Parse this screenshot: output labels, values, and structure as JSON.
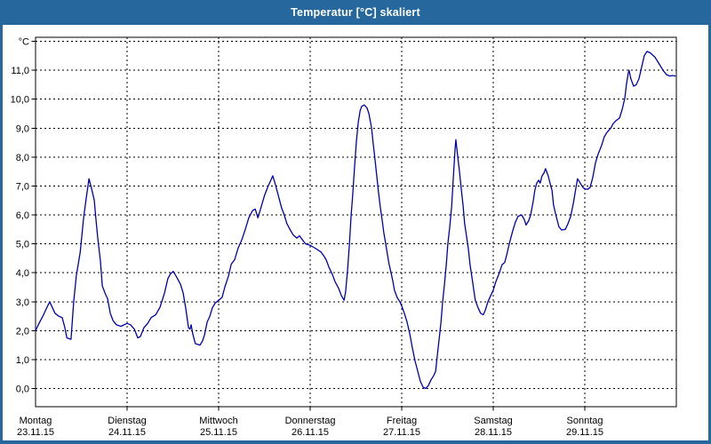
{
  "titlebar": {
    "title": "Temperatur [°C] skaliert"
  },
  "chart_data": {
    "type": "line",
    "title": "Temperatur [°C] skaliert",
    "grid": "dashed",
    "legend": "none",
    "y_axis": {
      "unit_label": "°C",
      "min": 0,
      "max": 12,
      "tick_step": 1,
      "tick_labels": [
        "0,0",
        "1,0",
        "2,0",
        "3,0",
        "4,0",
        "5,0",
        "6,0",
        "7,0",
        "8,0",
        "9,0",
        "10,0",
        "11,0"
      ]
    },
    "x_axis": {
      "unit": "hours_from_monday_00:00",
      "range_hours": [
        0,
        168
      ],
      "days": [
        {
          "weekday": "Montag",
          "date": "23.11.15"
        },
        {
          "weekday": "Dienstag",
          "date": "24.11.15"
        },
        {
          "weekday": "Mittwoch",
          "date": "25.11.15"
        },
        {
          "weekday": "Donnerstag",
          "date": "26.11.15"
        },
        {
          "weekday": "Freitag",
          "date": "27.11.15"
        },
        {
          "weekday": "Samstag",
          "date": "28.11.15"
        },
        {
          "weekday": "Sonntag",
          "date": "29.11.15"
        }
      ]
    },
    "style": {
      "line_color": "#0000B3",
      "grid_color": "#000000",
      "axis_color": "#000000",
      "frame_color": "#26689E",
      "title_text_color": "#FFFFFF",
      "background": "#FFFFFF"
    },
    "series": [
      {
        "name": "Temperatur",
        "unit": "°C",
        "points": [
          [
            0,
            2.0
          ],
          [
            0.9,
            2.25
          ],
          [
            1.9,
            2.5
          ],
          [
            2.8,
            2.75
          ],
          [
            3.7,
            3.0
          ],
          [
            4.4,
            2.8
          ],
          [
            5.1,
            2.6
          ],
          [
            6.1,
            2.5
          ],
          [
            7,
            2.45
          ],
          [
            7.7,
            2.1
          ],
          [
            8.2,
            1.75
          ],
          [
            9.3,
            1.7
          ],
          [
            10,
            3.0
          ],
          [
            10.7,
            3.9
          ],
          [
            11.7,
            4.7
          ],
          [
            12.6,
            5.9
          ],
          [
            13.3,
            6.6
          ],
          [
            14,
            7.25
          ],
          [
            14.7,
            6.9
          ],
          [
            15.4,
            6.5
          ],
          [
            15.8,
            5.9
          ],
          [
            16.3,
            5.2
          ],
          [
            17,
            4.4
          ],
          [
            17.5,
            3.55
          ],
          [
            18.2,
            3.3
          ],
          [
            18.9,
            3.1
          ],
          [
            19.6,
            2.6
          ],
          [
            20.3,
            2.35
          ],
          [
            21.2,
            2.2
          ],
          [
            22.4,
            2.15
          ],
          [
            24,
            2.25
          ],
          [
            24.9,
            2.2
          ],
          [
            25.9,
            2.05
          ],
          [
            26.8,
            1.75
          ],
          [
            27.5,
            1.8
          ],
          [
            28.4,
            2.1
          ],
          [
            29.4,
            2.25
          ],
          [
            30.3,
            2.45
          ],
          [
            31.5,
            2.55
          ],
          [
            32.6,
            2.8
          ],
          [
            33.8,
            3.3
          ],
          [
            34.7,
            3.8
          ],
          [
            35.4,
            3.97
          ],
          [
            36.1,
            4.05
          ],
          [
            37,
            3.85
          ],
          [
            38,
            3.6
          ],
          [
            38.7,
            3.3
          ],
          [
            39.4,
            2.75
          ],
          [
            40.1,
            2.1
          ],
          [
            40.5,
            2.05
          ],
          [
            40.8,
            2.2
          ],
          [
            41.2,
            1.9
          ],
          [
            41.9,
            1.55
          ],
          [
            43.1,
            1.5
          ],
          [
            43.8,
            1.65
          ],
          [
            44.3,
            1.85
          ],
          [
            45,
            2.3
          ],
          [
            45.7,
            2.5
          ],
          [
            46.4,
            2.8
          ],
          [
            47.1,
            2.95
          ],
          [
            48,
            3.05
          ],
          [
            48.9,
            3.15
          ],
          [
            49.6,
            3.5
          ],
          [
            50.6,
            3.9
          ],
          [
            51.3,
            4.3
          ],
          [
            52.2,
            4.45
          ],
          [
            53.1,
            4.85
          ],
          [
            54.1,
            5.15
          ],
          [
            55,
            5.5
          ],
          [
            55.9,
            5.9
          ],
          [
            56.9,
            6.15
          ],
          [
            57.6,
            6.2
          ],
          [
            58.3,
            5.9
          ],
          [
            59.2,
            6.3
          ],
          [
            60.1,
            6.7
          ],
          [
            61,
            7.0
          ],
          [
            61.7,
            7.2
          ],
          [
            62.2,
            7.35
          ],
          [
            62.9,
            7.05
          ],
          [
            63.6,
            6.7
          ],
          [
            64.5,
            6.25
          ],
          [
            65.2,
            6.0
          ],
          [
            65.9,
            5.7
          ],
          [
            66.9,
            5.45
          ],
          [
            67.6,
            5.3
          ],
          [
            68.5,
            5.2
          ],
          [
            69.2,
            5.28
          ],
          [
            69.9,
            5.15
          ],
          [
            70.8,
            5.0
          ],
          [
            72,
            4.95
          ],
          [
            72.9,
            4.88
          ],
          [
            73.9,
            4.8
          ],
          [
            74.8,
            4.72
          ],
          [
            75.5,
            4.6
          ],
          [
            76.2,
            4.45
          ],
          [
            76.9,
            4.2
          ],
          [
            77.8,
            3.95
          ],
          [
            78.5,
            3.7
          ],
          [
            79.5,
            3.45
          ],
          [
            80.2,
            3.2
          ],
          [
            80.9,
            3.05
          ],
          [
            81.3,
            3.35
          ],
          [
            81.8,
            4.1
          ],
          [
            82.3,
            5.0
          ],
          [
            82.7,
            5.9
          ],
          [
            83.2,
            6.8
          ],
          [
            83.6,
            7.6
          ],
          [
            84.1,
            8.5
          ],
          [
            84.6,
            9.2
          ],
          [
            85.1,
            9.6
          ],
          [
            85.5,
            9.75
          ],
          [
            86.2,
            9.8
          ],
          [
            86.9,
            9.7
          ],
          [
            87.4,
            9.5
          ],
          [
            88.1,
            9.0
          ],
          [
            88.5,
            8.5
          ],
          [
            89,
            7.9
          ],
          [
            89.5,
            7.3
          ],
          [
            89.9,
            6.8
          ],
          [
            90.4,
            6.25
          ],
          [
            90.9,
            5.8
          ],
          [
            91.3,
            5.4
          ],
          [
            91.8,
            5.0
          ],
          [
            92.3,
            4.6
          ],
          [
            92.7,
            4.3
          ],
          [
            93.2,
            4.0
          ],
          [
            93.7,
            3.7
          ],
          [
            94.1,
            3.4
          ],
          [
            94.8,
            3.15
          ],
          [
            95.5,
            3.0
          ],
          [
            96,
            2.85
          ],
          [
            96.7,
            2.6
          ],
          [
            97.4,
            2.3
          ],
          [
            98.1,
            1.9
          ],
          [
            98.8,
            1.4
          ],
          [
            99.5,
            0.95
          ],
          [
            100.2,
            0.6
          ],
          [
            100.9,
            0.25
          ],
          [
            101.6,
            0.05
          ],
          [
            102.3,
            0.0
          ],
          [
            103,
            0.1
          ],
          [
            103.7,
            0.3
          ],
          [
            104.4,
            0.45
          ],
          [
            104.9,
            0.6
          ],
          [
            105.3,
            1.1
          ],
          [
            105.8,
            1.7
          ],
          [
            106.3,
            2.3
          ],
          [
            106.7,
            2.95
          ],
          [
            107.2,
            3.6
          ],
          [
            107.7,
            4.3
          ],
          [
            108.1,
            5.0
          ],
          [
            108.6,
            5.6
          ],
          [
            109.1,
            6.3
          ],
          [
            109.5,
            7.2
          ],
          [
            110,
            8.3
          ],
          [
            110.2,
            8.6
          ],
          [
            110.7,
            8.0
          ],
          [
            111.1,
            7.55
          ],
          [
            111.6,
            6.9
          ],
          [
            112.1,
            6.3
          ],
          [
            112.5,
            5.7
          ],
          [
            113,
            5.25
          ],
          [
            113.5,
            4.8
          ],
          [
            113.9,
            4.3
          ],
          [
            114.4,
            3.85
          ],
          [
            114.9,
            3.4
          ],
          [
            115.3,
            3.05
          ],
          [
            116,
            2.8
          ],
          [
            116.7,
            2.6
          ],
          [
            117.4,
            2.55
          ],
          [
            117.9,
            2.7
          ],
          [
            118.6,
            3.0
          ],
          [
            119.3,
            3.2
          ],
          [
            120,
            3.4
          ],
          [
            120.7,
            3.7
          ],
          [
            121.6,
            4.0
          ],
          [
            122.3,
            4.28
          ],
          [
            123,
            4.36
          ],
          [
            123.5,
            4.6
          ],
          [
            124.2,
            5.0
          ],
          [
            125.1,
            5.45
          ],
          [
            125.8,
            5.75
          ],
          [
            126.5,
            5.95
          ],
          [
            127.4,
            6.0
          ],
          [
            128.1,
            5.85
          ],
          [
            128.6,
            5.65
          ],
          [
            129.3,
            5.8
          ],
          [
            129.8,
            6.0
          ],
          [
            130.5,
            6.5
          ],
          [
            130.9,
            6.85
          ],
          [
            131.4,
            7.1
          ],
          [
            131.9,
            7.2
          ],
          [
            132.3,
            7.1
          ],
          [
            132.8,
            7.35
          ],
          [
            133.3,
            7.45
          ],
          [
            133.7,
            7.6
          ],
          [
            134.4,
            7.35
          ],
          [
            134.9,
            7.1
          ],
          [
            135.4,
            6.85
          ],
          [
            135.8,
            6.35
          ],
          [
            136.3,
            6.05
          ],
          [
            136.8,
            5.8
          ],
          [
            137.2,
            5.6
          ],
          [
            137.9,
            5.48
          ],
          [
            138.9,
            5.5
          ],
          [
            139.6,
            5.7
          ],
          [
            140.3,
            5.95
          ],
          [
            141,
            6.4
          ],
          [
            141.7,
            6.95
          ],
          [
            142.1,
            7.25
          ],
          [
            142.8,
            7.1
          ],
          [
            143.5,
            6.95
          ],
          [
            144,
            6.9
          ],
          [
            144.7,
            6.88
          ],
          [
            145.4,
            6.95
          ],
          [
            146.1,
            7.3
          ],
          [
            146.8,
            7.8
          ],
          [
            147.5,
            8.1
          ],
          [
            148.4,
            8.4
          ],
          [
            149.1,
            8.7
          ],
          [
            149.8,
            8.85
          ],
          [
            150.8,
            9.0
          ],
          [
            151.4,
            9.15
          ],
          [
            152.1,
            9.25
          ],
          [
            153.1,
            9.35
          ],
          [
            153.8,
            9.65
          ],
          [
            154.5,
            10.05
          ],
          [
            154.9,
            10.5
          ],
          [
            155.4,
            10.9
          ],
          [
            155.6,
            11.0
          ],
          [
            156.1,
            10.7
          ],
          [
            156.8,
            10.45
          ],
          [
            157.5,
            10.5
          ],
          [
            158.2,
            10.7
          ],
          [
            158.9,
            11.1
          ],
          [
            159.6,
            11.5
          ],
          [
            160.3,
            11.65
          ],
          [
            161.2,
            11.6
          ],
          [
            162.4,
            11.45
          ],
          [
            163.6,
            11.2
          ],
          [
            164.5,
            11.0
          ],
          [
            165.4,
            10.85
          ],
          [
            166.3,
            10.8
          ],
          [
            167,
            10.82
          ],
          [
            167.7,
            10.8
          ]
        ]
      }
    ]
  }
}
